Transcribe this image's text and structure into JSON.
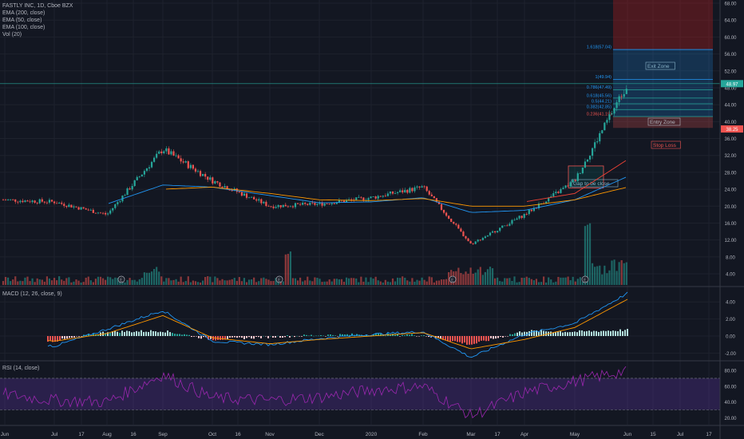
{
  "header": {
    "symbol_title": "FASTLY INC, 1D, Cboe BZX",
    "indicators": [
      "EMA (200, close)",
      "EMA (50, close)",
      "EMA (100, close)",
      "Vol (20)"
    ]
  },
  "macd_label": "MACD (12, 26, close, 9)",
  "rsi_label": "RSI (14, close)",
  "annotations": {
    "exit_zone": "Exit Zone",
    "entry_zone": "Entry Zone",
    "stop_loss": "Stop Loss",
    "gap": "Gap to be close",
    "earnings_marker": "E"
  },
  "fib_levels": [
    {
      "label": "1.618(57.04)",
      "value": 57.04
    },
    {
      "label": "1(49.94)",
      "value": 49.94
    },
    {
      "label": "0.786(47.49)",
      "value": 47.49
    },
    {
      "label": "0.618(45.56)",
      "value": 45.56
    },
    {
      "label": "0.5(44.21)",
      "value": 44.21
    },
    {
      "label": "0.382(42.85)",
      "value": 42.85
    },
    {
      "label": "0.236(41.19)",
      "value": 41.19
    }
  ],
  "price_badges": [
    {
      "text": "48.97",
      "value": 48.97,
      "color": "#26a69a"
    },
    {
      "text": "38.25",
      "value": 38.25,
      "color": "#ef5350"
    }
  ],
  "colors": {
    "up": "#26a69a",
    "down": "#ef5350",
    "ema50": "#2196f3",
    "ema100": "#ff9800",
    "ema200": "#f44336",
    "rsi": "#9c27b0",
    "macd": "#2196f3",
    "signal": "#ff9800"
  },
  "chart_data": {
    "type": "line",
    "title": "FASTLY INC, 1D, Cboe BZX",
    "xlabel": "",
    "ylabel": "",
    "ylim": [
      0,
      68
    ],
    "y_ticks": [
      "68.00",
      "64.00",
      "60.00",
      "56.00",
      "52.00",
      "48.00",
      "44.00",
      "40.00",
      "36.00",
      "32.00",
      "28.00",
      "24.00",
      "20.00",
      "16.00",
      "12.00",
      "8.00",
      "4.00"
    ],
    "x_ticks": [
      "Jun",
      "Jul",
      "17",
      "Aug",
      "16",
      "Sep",
      "Oct",
      "16",
      "Nov",
      "Dec",
      "2020",
      "Feb",
      "Mar",
      "17",
      "Apr",
      "May",
      "Jun",
      "15",
      "Jul",
      "17"
    ],
    "macd_ticks": [
      "4.00",
      "2.00",
      "0.00",
      "-2.00"
    ],
    "rsi_ticks": [
      "80.00",
      "60.00",
      "40.00",
      "20.00"
    ],
    "series": [
      {
        "name": "Price",
        "x": [
          "Jun",
          "Jul",
          "Aug",
          "Sep",
          "Oct",
          "Nov",
          "Dec",
          "2020",
          "Feb",
          "Mar",
          "Apr",
          "May",
          "Jun"
        ],
        "values": [
          21.5,
          21.0,
          18.0,
          33.5,
          26.0,
          20.0,
          20.5,
          22.0,
          24.5,
          11.0,
          18.0,
          26.0,
          48.97
        ]
      },
      {
        "name": "EMA (50, close)",
        "x": [
          "Jun",
          "Jul",
          "Aug",
          "Sep",
          "Oct",
          "Nov",
          "Dec",
          "2020",
          "Feb",
          "Mar",
          "Apr",
          "May",
          "Jun"
        ],
        "values": [
          null,
          null,
          20.5,
          25.0,
          24.5,
          22.5,
          20.8,
          21.0,
          22.0,
          18.5,
          19.0,
          21.5,
          27.0
        ]
      },
      {
        "name": "EMA (100, close)",
        "x": [
          "Jun",
          "Jul",
          "Aug",
          "Sep",
          "Oct",
          "Nov",
          "Dec",
          "2020",
          "Feb",
          "Mar",
          "Apr",
          "May",
          "Jun"
        ],
        "values": [
          null,
          null,
          null,
          24.0,
          24.5,
          23.0,
          21.5,
          21.3,
          21.8,
          20.0,
          20.0,
          21.5,
          24.5
        ]
      },
      {
        "name": "EMA (200, close)",
        "x": [
          "Jun",
          "Jul",
          "Aug",
          "Sep",
          "Oct",
          "Nov",
          "Dec",
          "2020",
          "Feb",
          "Mar",
          "Apr",
          "May",
          "Jun"
        ],
        "values": [
          null,
          null,
          null,
          null,
          null,
          null,
          null,
          null,
          null,
          null,
          21.0,
          23.0,
          31.0
        ]
      }
    ]
  }
}
